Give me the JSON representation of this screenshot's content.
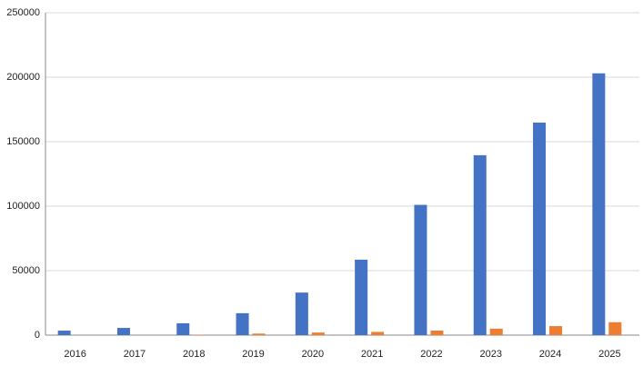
{
  "chart_data": {
    "type": "bar",
    "categories": [
      "2016",
      "2017",
      "2018",
      "2019",
      "2020",
      "2021",
      "2022",
      "2023",
      "2024",
      "2025"
    ],
    "series": [
      {
        "color": "#4472c4",
        "values": [
          3500,
          5600,
          9200,
          17000,
          33000,
          58500,
          101000,
          139500,
          164800,
          203000
        ]
      },
      {
        "color": "#ed7d31",
        "values": [
          0,
          0,
          300,
          1200,
          2000,
          2500,
          3500,
          5000,
          7000,
          10000
        ]
      }
    ],
    "ylim": [
      0,
      250000
    ],
    "yticks": [
      0,
      50000,
      100000,
      150000,
      200000,
      250000
    ],
    "grid": true
  }
}
